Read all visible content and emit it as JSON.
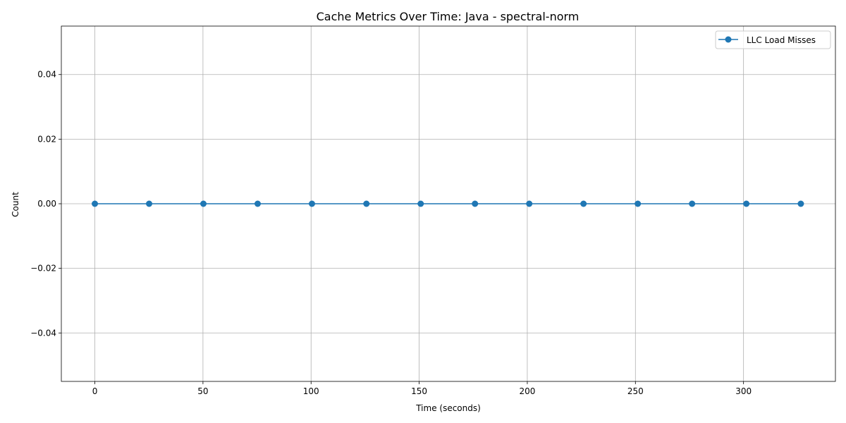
{
  "chart_data": {
    "type": "line",
    "title": "Cache Metrics Over Time: Java - spectral-norm",
    "xlabel": "Time (seconds)",
    "ylabel": "Count",
    "xlim": [
      -15.5,
      342.5
    ],
    "ylim": [
      -0.055,
      0.055
    ],
    "xticks": [
      0,
      50,
      100,
      150,
      200,
      250,
      300
    ],
    "yticks": [
      -0.04,
      -0.02,
      0.0,
      0.02,
      0.04
    ],
    "ytick_labels": [
      "−0.04",
      "−0.02",
      "0.00",
      "0.02",
      "0.04"
    ],
    "grid": true,
    "legend_position": "top-right",
    "series": [
      {
        "name": "LLC Load Misses",
        "color": "#1f77b4",
        "marker": "circle",
        "x": [
          0,
          25.1,
          50.2,
          75.3,
          100.4,
          125.6,
          150.7,
          175.8,
          200.9,
          226.0,
          251.1,
          276.2,
          301.3,
          326.5
        ],
        "y": [
          0,
          0,
          0,
          0,
          0,
          0,
          0,
          0,
          0,
          0,
          0,
          0,
          0,
          0
        ]
      }
    ]
  }
}
